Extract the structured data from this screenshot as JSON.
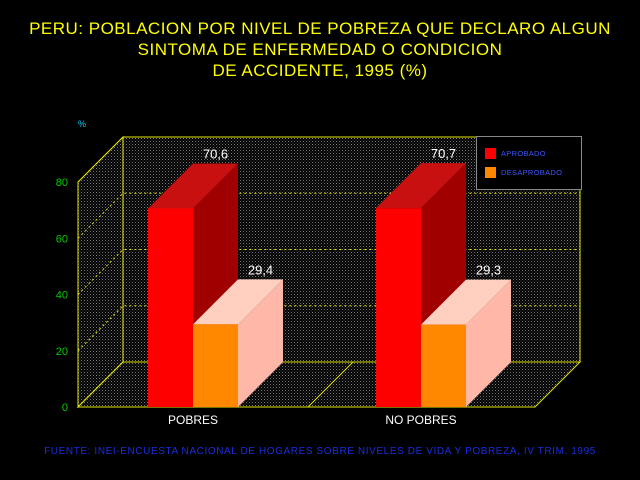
{
  "title_lines": [
    "PERU: POBLACION POR NIVEL DE POBREZA QUE DECLARO ALGUN",
    "SINTOMA DE ENFERMEDAD O CONDICION",
    "DE ACCIDENTE, 1995 (%)"
  ],
  "source": "FUENTE: INEI-ENCUESTA NACIONAL DE HOGARES SOBRE NIVELES DE VIDA Y POBREZA, IV TRIM. 1995",
  "colors": {
    "title": "#ffff00",
    "axis": "#e8e800",
    "tick_label": "#00cc00",
    "unit_label": "#00ccff",
    "source": "#1a2ee0",
    "legend_text": "#3a56ff"
  },
  "chart_data": {
    "type": "bar",
    "categories": [
      "POBRES",
      "NO POBRES"
    ],
    "series": [
      {
        "name": "APROBADO",
        "values": [
          70.6,
          70.7
        ],
        "labels": [
          "70,6",
          "70,7"
        ],
        "front": "#ff0000",
        "side": "#a00000",
        "top": "#c81010"
      },
      {
        "name": "DESAPROBADO",
        "values": [
          29.4,
          29.3
        ],
        "labels": [
          "29,4",
          "29,3"
        ],
        "front": "#ff8800",
        "side": "#ffb8a8",
        "top": "#ffd0c0"
      }
    ],
    "ylabel": "%",
    "ylim": [
      0,
      80
    ],
    "yticks": [
      0,
      20,
      40,
      60,
      80
    ],
    "grid": true,
    "legend_position": "top-right"
  }
}
